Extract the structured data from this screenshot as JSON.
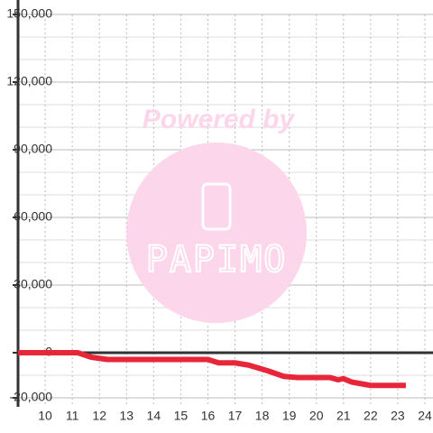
{
  "chart_data": {
    "type": "line",
    "x": [
      9,
      11.2,
      11.7,
      12.3,
      16.0,
      16.4,
      17.0,
      17.5,
      18.2,
      18.8,
      19.3,
      20.5,
      20.8,
      21.0,
      21.3,
      22.0,
      23.3
    ],
    "series": [
      {
        "color": "#e8263a",
        "values": [
          0,
          0,
          -2000,
          -3000,
          -3000,
          -4500,
          -4500,
          -5500,
          -8000,
          -10500,
          -11000,
          -11000,
          -12000,
          -11500,
          -13000,
          -14500,
          -14500
        ]
      }
    ],
    "xlim": [
      9,
      24.3
    ],
    "xticks": [
      10,
      11,
      12,
      13,
      14,
      15,
      16,
      17,
      18,
      19,
      20,
      21,
      22,
      23,
      24
    ],
    "ylim": [
      -24000,
      150000
    ],
    "yticks": [
      {
        "value": -20000,
        "label": "-20,000"
      },
      0,
      {
        "value": 30000,
        "label": "30,000"
      },
      {
        "value": 60000,
        "label": "60,000"
      },
      {
        "value": 90000,
        "label": "90,000"
      },
      {
        "value": 120000,
        "label": "120,000"
      },
      {
        "value": 150000,
        "label": "150,000"
      }
    ],
    "yminorticks": [
      -10000,
      10000,
      20000,
      40000,
      50000,
      70000,
      80000,
      100000,
      110000,
      130000,
      140000
    ],
    "grid": true,
    "watermark": {
      "title": "Powered by",
      "brand": "PAPIMO"
    }
  }
}
